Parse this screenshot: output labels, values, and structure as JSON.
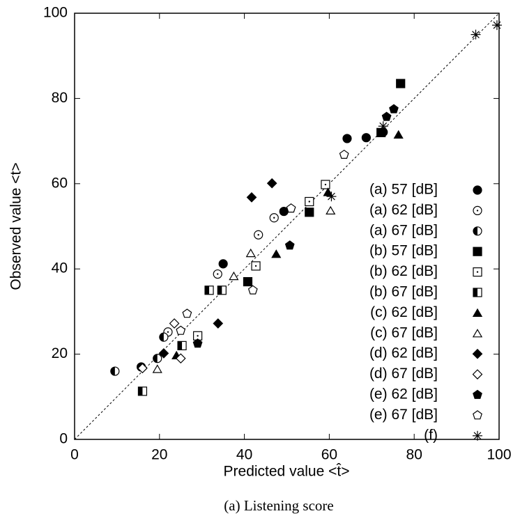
{
  "chart_data": {
    "type": "scatter",
    "x_label": "Predicted value <t̂>",
    "y_label": "Observed value <t>",
    "caption": "(a)  Listening score",
    "xlim": [
      0,
      100
    ],
    "ylim": [
      0,
      100
    ],
    "xticks": [
      0,
      20,
      40,
      60,
      80,
      100
    ],
    "yticks": [
      0,
      20,
      40,
      60,
      80,
      100
    ],
    "diagonal": true,
    "legend": "right",
    "series": [
      {
        "name": "(a) 57 [dB]",
        "marker": "circle-filled",
        "color": "#000000",
        "x": [
          15.7,
          35,
          49.3,
          64.2,
          68.7,
          72.7
        ],
        "values": [
          17,
          41.2,
          53.5,
          70.6,
          70.8,
          72.1
        ]
      },
      {
        "name": "(a) 62 [dB]",
        "marker": "circle-dot",
        "color": "#000000",
        "x": [
          22,
          33.7,
          43.3,
          47
        ],
        "values": [
          25.2,
          38.8,
          48,
          52
        ]
      },
      {
        "name": "(a) 67 [dB]",
        "marker": "circle-half",
        "color": "#000000",
        "x": [
          9.5,
          19.5,
          21
        ],
        "values": [
          16,
          19,
          24
        ]
      },
      {
        "name": "(b) 57 [dB]",
        "marker": "square-filled",
        "color": "#000000",
        "x": [
          40.8,
          55.3,
          72.2,
          76.8
        ],
        "values": [
          37,
          53.3,
          72,
          83.5
        ]
      },
      {
        "name": "(b) 62 [dB]",
        "marker": "square-dot",
        "color": "#000000",
        "x": [
          29,
          42.7,
          55.3,
          59.1
        ],
        "values": [
          24.3,
          40.7,
          55.8,
          59.8
        ]
      },
      {
        "name": "(b) 67 [dB]",
        "marker": "square-half",
        "color": "#000000",
        "x": [
          16,
          25.3,
          31.7,
          34.7
        ],
        "values": [
          11.3,
          22,
          35,
          35
        ]
      },
      {
        "name": "(c) 62 [dB]",
        "marker": "triangle-filled",
        "color": "#000000",
        "x": [
          24,
          47.5,
          59.7,
          76.3
        ],
        "values": [
          19.7,
          43.5,
          58,
          71.5
        ]
      },
      {
        "name": "(c) 67 [dB]",
        "marker": "triangle-open",
        "color": "#000000",
        "x": [
          19.5,
          37.5,
          41.5,
          60.3
        ],
        "values": [
          16.5,
          38.3,
          43.7,
          53.7
        ]
      },
      {
        "name": "(d) 62 [dB]",
        "marker": "diamond-filled",
        "color": "#000000",
        "x": [
          21,
          33.8,
          41.7,
          46.5
        ],
        "values": [
          20.2,
          27.2,
          56.8,
          60.1
        ]
      },
      {
        "name": "(d) 67 [dB]",
        "marker": "diamond-open",
        "color": "#000000",
        "x": [
          16,
          23.5,
          25
        ],
        "values": [
          16.7,
          27.2,
          19
        ]
      },
      {
        "name": "(e) 62 [dB]",
        "marker": "pentagon-filled",
        "color": "#000000",
        "x": [
          29,
          50.7,
          73.5,
          75.2
        ],
        "values": [
          22.5,
          45.5,
          75.7,
          77.5
        ]
      },
      {
        "name": "(e) 67 [dB]",
        "marker": "pentagon-open",
        "color": "#000000",
        "x": [
          25,
          26.5,
          42,
          51,
          63.5
        ],
        "values": [
          25.5,
          29.5,
          35,
          54.2,
          66.8
        ]
      },
      {
        "name": "(f)",
        "marker": "star",
        "color": "#000000",
        "x": [
          60.5,
          72.7,
          94.5,
          99.5
        ],
        "values": [
          57,
          73.5,
          95,
          97.2
        ]
      }
    ]
  }
}
